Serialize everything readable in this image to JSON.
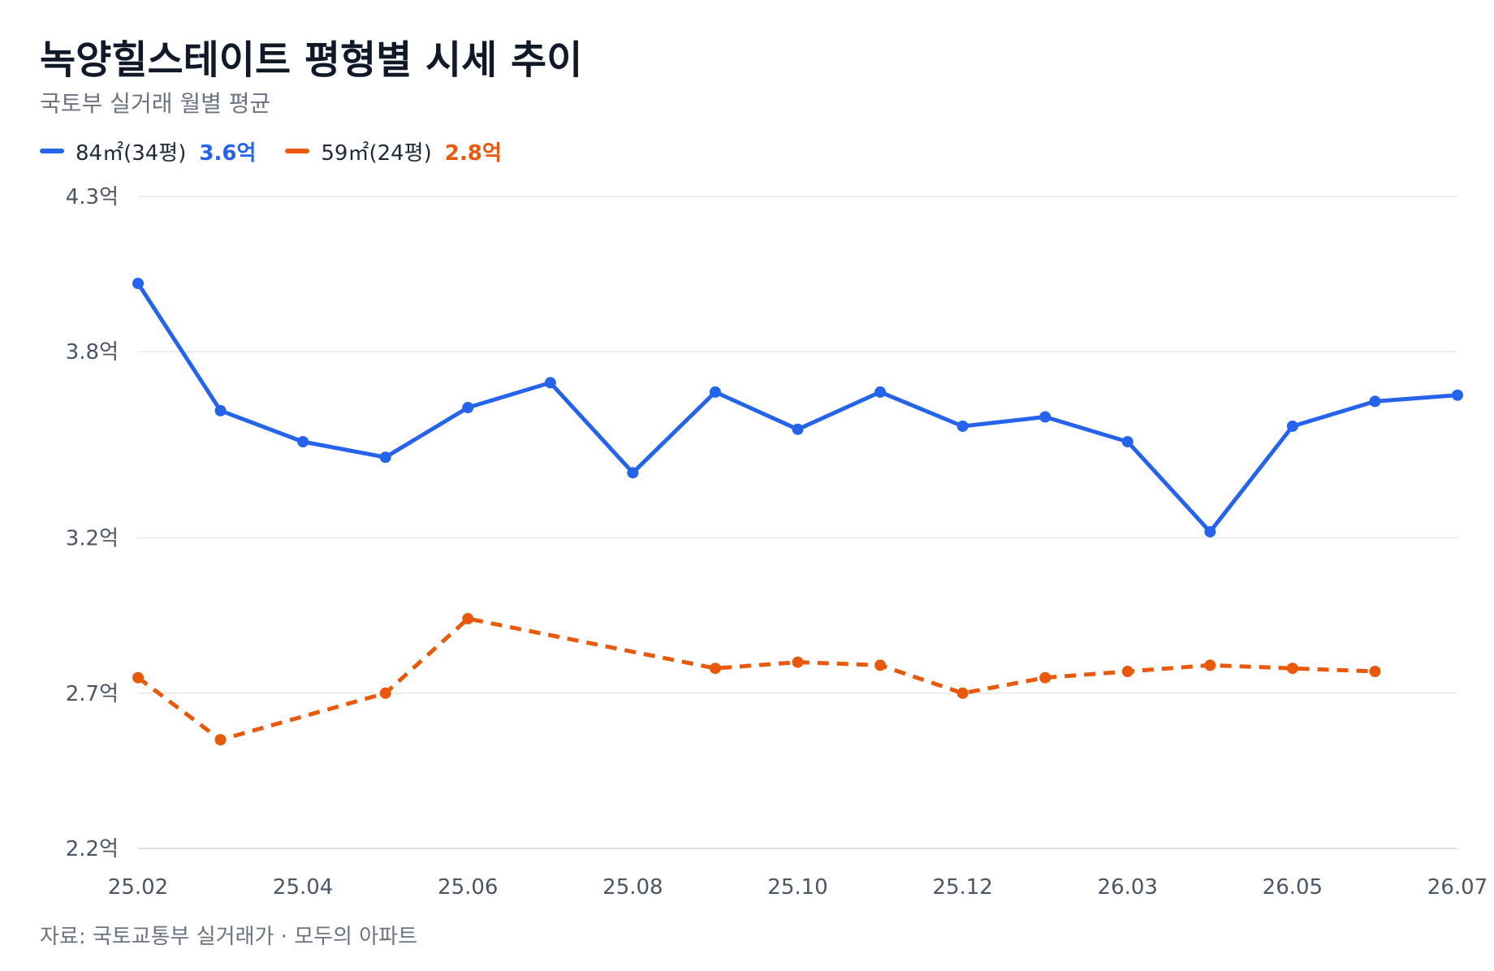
{
  "header": {
    "title": "녹양힐스테이트 평형별 시세 추이",
    "subtitle": "국토부 실거래 월별 평균"
  },
  "legend": {
    "items": [
      {
        "name": "84㎡(34평)",
        "value": "3.6억",
        "color": "#2563eb"
      },
      {
        "name": "59㎡(24평)",
        "value": "2.8억",
        "color": "#e8590c"
      }
    ]
  },
  "footer": {
    "source": "자료: 국토교통부 실거래가 · 모두의 아파트"
  },
  "chart_data": {
    "type": "line",
    "title": "녹양힐스테이트 평형별 시세 추이",
    "subtitle": "국토부 실거래 월별 평균",
    "y_unit": "억",
    "ylim": [
      2.2,
      4.3
    ],
    "y_ticks": [
      2.2,
      2.7,
      3.2,
      3.8,
      4.3
    ],
    "y_tick_labels": [
      "2.2억",
      "2.7억",
      "3.2억",
      "3.8억",
      "4.3억"
    ],
    "x": [
      "25.02",
      "25.03",
      "25.04",
      "25.05",
      "25.06",
      "25.07",
      "25.08",
      "25.09",
      "25.10",
      "25.11",
      "25.12",
      "26.01",
      "26.03",
      "26.04",
      "26.05",
      "26.06",
      "26.07"
    ],
    "x_tick_labels": [
      "25.02",
      "25.04",
      "25.06",
      "25.08",
      "25.10",
      "25.12",
      "26.03",
      "26.05",
      "26.07"
    ],
    "grid": "horizontal",
    "legend_position": "top-left",
    "series": [
      {
        "name": "84㎡(34평)",
        "color": "#2563eb",
        "dashed": false,
        "values": [
          4.02,
          3.61,
          3.51,
          3.46,
          3.62,
          3.7,
          3.41,
          3.67,
          3.55,
          3.67,
          3.56,
          3.59,
          3.51,
          3.22,
          3.56,
          3.64,
          3.66
        ]
      },
      {
        "name": "59㎡(24평)",
        "color": "#e8590c",
        "dashed": true,
        "values": [
          2.75,
          2.55,
          null,
          2.7,
          2.94,
          null,
          null,
          2.78,
          2.8,
          2.79,
          2.7,
          2.75,
          2.77,
          2.79,
          2.78,
          2.77,
          null
        ]
      }
    ]
  }
}
